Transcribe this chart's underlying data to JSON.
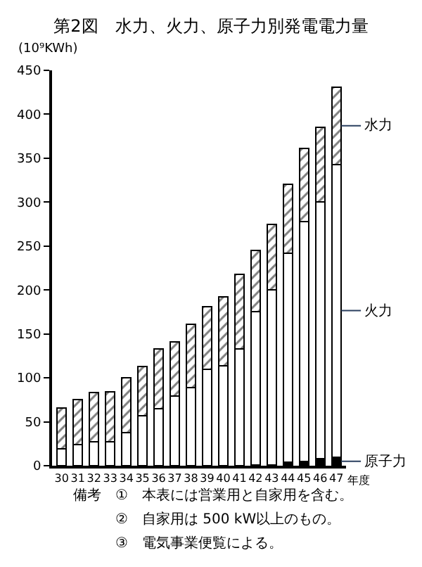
{
  "chart_data": {
    "type": "bar",
    "stacked": true,
    "title": "第2図　水力、火力、原子力別発電電力量",
    "ylabel": "(10⁹KWh)",
    "xlabel": "年度",
    "categories": [
      "30",
      "31",
      "32",
      "33",
      "34",
      "35",
      "36",
      "37",
      "38",
      "39",
      "40",
      "41",
      "42",
      "43",
      "44",
      "45",
      "46",
      "47"
    ],
    "series": [
      {
        "name": "原子力",
        "color": "#000000",
        "values": [
          0,
          0,
          0,
          0,
          0,
          0,
          0,
          0,
          0,
          0,
          0,
          0,
          1,
          1,
          4,
          5,
          8,
          10
        ]
      },
      {
        "name": "火力",
        "color": "#ffffff",
        "values": [
          19,
          24,
          27,
          27,
          38,
          57,
          65,
          79,
          89,
          110,
          114,
          133,
          174,
          199,
          238,
          273,
          292,
          333
        ]
      },
      {
        "name": "水力",
        "color": "#000000",
        "values": [
          47,
          51,
          56,
          57,
          62,
          56,
          68,
          62,
          72,
          71,
          78,
          85,
          70,
          75,
          78,
          83,
          85,
          88
        ]
      }
    ],
    "ylim": [
      0,
      450
    ],
    "yticks": [
      0,
      50,
      100,
      150,
      200,
      250,
      300,
      350,
      400,
      450
    ],
    "legend": false,
    "annotations": [
      "備考　①　本表には営業用と自家用を含む。",
      "　　　②　自家用は 500 kW以上のもの。",
      "　　　③　電気事業便覧による。"
    ]
  }
}
